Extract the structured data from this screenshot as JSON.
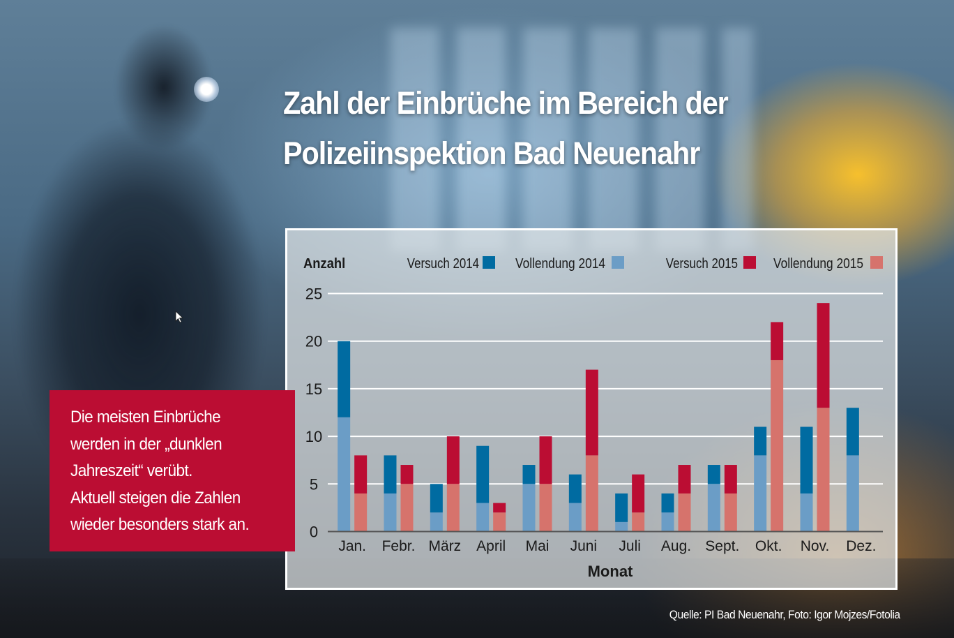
{
  "title": {
    "line1": "Zahl der Einbrüche im Bereich der",
    "line2": "Polizeiinspektion Bad Neuenahr"
  },
  "note": {
    "lines": [
      "Die meisten Einbrüche",
      "werden in der „dunklen",
      "Jahreszeit“ verübt.",
      "Aktuell steigen die Zahlen",
      "wieder besonders stark an."
    ],
    "background_color": "#bb0d33"
  },
  "source": "Quelle: PI Bad Neuenahr, Foto: Igor Mojzes/Fotolia",
  "chart_data": {
    "type": "bar",
    "stacked": true,
    "grouped": true,
    "title": "Zahl der Einbrüche im Bereich der Polizeiinspektion Bad Neuenahr",
    "xlabel": "Monat",
    "ylabel": "Anzahl",
    "ylim": [
      0,
      25
    ],
    "yticks": [
      0,
      5,
      10,
      15,
      20,
      25
    ],
    "grid": true,
    "legend_position": "top",
    "categories": [
      "Jan.",
      "Febr.",
      "März",
      "April",
      "Mai",
      "Juni",
      "Juli",
      "Aug.",
      "Sept.",
      "Okt.",
      "Nov.",
      "Dez."
    ],
    "groups": [
      {
        "year": "2014",
        "stack": [
          {
            "name": "Vollendung 2014",
            "color": "#6b9dc6",
            "values": [
              12,
              4,
              2,
              3,
              5,
              3,
              1,
              2,
              5,
              8,
              4,
              8
            ]
          },
          {
            "name": "Versuch 2014",
            "color": "#006ba1",
            "values": [
              8,
              4,
              3,
              6,
              2,
              3,
              3,
              2,
              2,
              3,
              7,
              5
            ]
          }
        ]
      },
      {
        "year": "2015",
        "stack": [
          {
            "name": "Vollendung 2015",
            "color": "#d6736c",
            "values": [
              4,
              5,
              5,
              2,
              5,
              8,
              2,
              4,
              4,
              18,
              13,
              null
            ]
          },
          {
            "name": "Versuch 2015",
            "color": "#bb0d33",
            "values": [
              4,
              2,
              5,
              1,
              5,
              9,
              4,
              3,
              3,
              4,
              11,
              null
            ]
          }
        ]
      }
    ],
    "legend": [
      {
        "name": "Versuch 2014",
        "color": "#006ba1"
      },
      {
        "name": "Vollendung 2014",
        "color": "#6b9dc6"
      },
      {
        "name": "Versuch 2015",
        "color": "#bb0d33"
      },
      {
        "name": "Vollendung 2015",
        "color": "#d6736c"
      }
    ]
  }
}
